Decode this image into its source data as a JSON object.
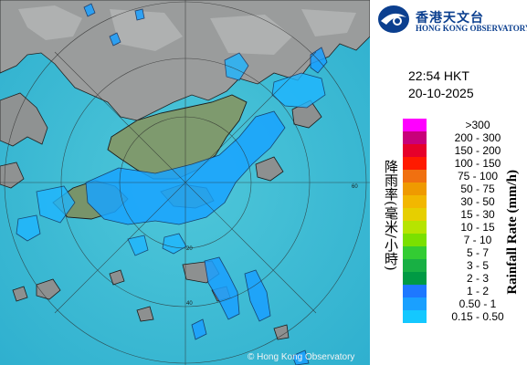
{
  "logo": {
    "name_zh": "香港天文台",
    "name_en": "HONG KONG OBSERVATORY"
  },
  "time": "22:54 HKT",
  "date": "20-10-2025",
  "copyright": "© Hong Kong Observatory",
  "legend": {
    "title_zh": "降雨率(毫米/小時)",
    "title_en": "Rainfall Rate (mm/h)",
    "items": [
      {
        "range": ">300",
        "color": "#ff00ff"
      },
      {
        "range": "200 - 300",
        "color": "#c8007a"
      },
      {
        "range": "150 - 200",
        "color": "#e6002a"
      },
      {
        "range": "100 - 150",
        "color": "#ff1a00"
      },
      {
        "range": "75 - 100",
        "color": "#f07010"
      },
      {
        "range": "50 - 75",
        "color": "#ef9a00"
      },
      {
        "range": "30 - 50",
        "color": "#f2b700"
      },
      {
        "range": "15 - 30",
        "color": "#e6cf00"
      },
      {
        "range": "10 - 15",
        "color": "#b6e400"
      },
      {
        "range": "7 - 10",
        "color": "#7ae000"
      },
      {
        "range": "5 - 7",
        "color": "#33cc33"
      },
      {
        "range": "3 - 5",
        "color": "#18b044"
      },
      {
        "range": "2 - 3",
        "color": "#009a44"
      },
      {
        "range": "1 - 2",
        "color": "#1e78ff"
      },
      {
        "range": "0.50 - 1",
        "color": "#1aa0ff"
      },
      {
        "range": "0.15 - 0.50",
        "color": "#14c8ff"
      }
    ]
  },
  "map": {
    "range_labels": [
      "20",
      "40",
      "60"
    ]
  }
}
